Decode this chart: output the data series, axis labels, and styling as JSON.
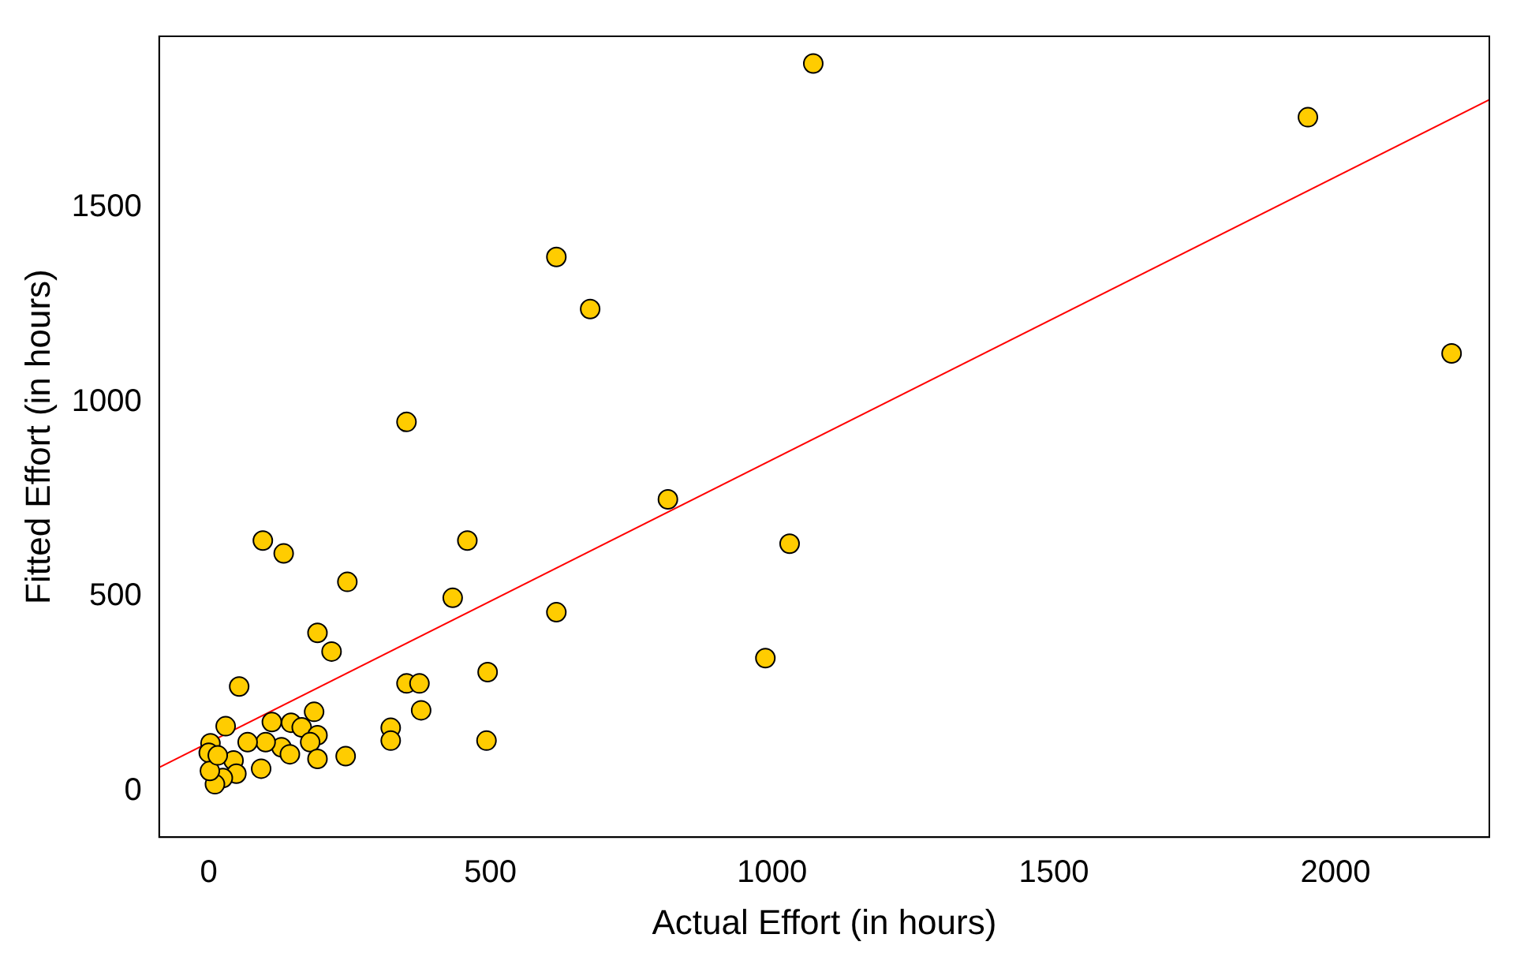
{
  "chart_data": {
    "type": "scatter",
    "xlabel": "Actual Effort (in hours)",
    "ylabel": "Fitted Effort (in hours)",
    "xlim": [
      -88,
      2273
    ],
    "ylim": [
      -118,
      1940
    ],
    "xticks": [
      0,
      500,
      1000,
      1500,
      2000
    ],
    "yticks": [
      0,
      500,
      1000,
      1500
    ],
    "grid": false,
    "legend": false,
    "marker": "circle",
    "series": [
      {
        "color": "#ffcc00",
        "x": [
          1073,
          1951,
          2206,
          617,
          677,
          351,
          815,
          1031,
          96,
          133,
          459,
          246,
          433,
          617,
          988,
          193,
          218,
          54,
          351,
          374,
          495,
          377,
          187,
          493,
          243,
          323,
          323,
          30,
          112,
          146,
          165,
          193,
          180,
          129,
          144,
          101,
          69,
          193,
          93,
          3,
          0,
          35,
          44,
          49,
          25,
          11,
          2,
          16
        ],
        "values": [
          1870,
          1732,
          1125,
          1373,
          1239,
          949,
          750,
          636,
          644,
          611,
          644,
          538,
          497,
          460,
          342,
          407,
          359,
          269,
          277,
          277,
          306,
          208,
          204,
          130,
          90,
          163,
          130,
          167,
          178,
          176,
          164,
          144,
          126,
          113,
          95,
          126,
          126,
          83,
          58,
          123,
          99,
          null,
          79,
          45,
          34,
          18,
          52,
          92
        ]
      },
      {
        "type": "line",
        "color": "#ff0000",
        "marker": "none",
        "x": [
          -88,
          2273
        ],
        "values": [
          61,
          1777
        ]
      }
    ]
  }
}
